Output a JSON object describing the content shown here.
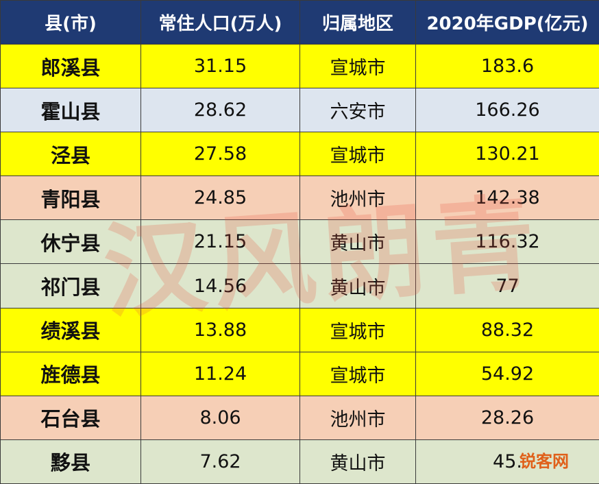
{
  "table": {
    "header": [
      "县(市)",
      "常住人口(万人)",
      "归属地区",
      "2020年GDP(亿元)"
    ],
    "header_color": "#1f3a73",
    "rows": [
      {
        "cells": [
          "郎溪县",
          "31.15",
          "宣城市",
          "183.6"
        ],
        "color": "#ffff00"
      },
      {
        "cells": [
          "霍山县",
          "28.62",
          "六安市",
          "166.26"
        ],
        "color": "#dde5ef"
      },
      {
        "cells": [
          "泾县",
          "27.58",
          "宣城市",
          "130.21"
        ],
        "color": "#ffff00"
      },
      {
        "cells": [
          "青阳县",
          "24.85",
          "池州市",
          "142.38"
        ],
        "color": "#f6cfb6"
      },
      {
        "cells": [
          "休宁县",
          "21.15",
          "黄山市",
          "116.32"
        ],
        "color": "#dde6cc"
      },
      {
        "cells": [
          "祁门县",
          "14.56",
          "黄山市",
          "77"
        ],
        "color": "#dde6cc"
      },
      {
        "cells": [
          "绩溪县",
          "13.88",
          "宣城市",
          "88.32"
        ],
        "color": "#ffff00"
      },
      {
        "cells": [
          "旌德县",
          "11.24",
          "宣城市",
          "54.92"
        ],
        "color": "#ffff00"
      },
      {
        "cells": [
          "石台县",
          "8.06",
          "池州市",
          "28.26"
        ],
        "color": "#f6cfb6"
      },
      {
        "cells": [
          "黟县",
          "7.62",
          "黄山市",
          "45."
        ],
        "color": "#dde6cc"
      }
    ]
  },
  "watermarks": [
    "汉风朗青",
    "锐客网"
  ]
}
